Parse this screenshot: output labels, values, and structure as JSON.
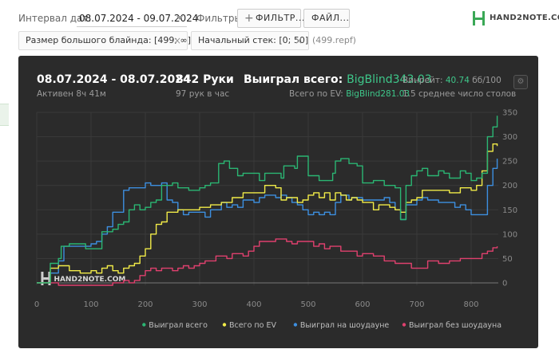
{
  "toolbar": {
    "interval_label": "Интервал дат:",
    "date_range": "08.07.2024 - 09.07.2024",
    "filters_label": "Фильтры:",
    "filter_button": "ФИЛЬТР...",
    "files_button": "ФАЙЛ..."
  },
  "logo": {
    "name": "HAND2NOTE.COM"
  },
  "chips": [
    {
      "label": "Размер большого блайнда: [499; ∞]",
      "close": "×"
    },
    {
      "label": "Начальный стек: [0; 50]",
      "close": "×"
    }
  ],
  "file_name": "(499.repf)",
  "summary": {
    "period": "08.07.2024 - 08.07.2024",
    "active": "Активен 8ч 41м",
    "hands": "842 Руки",
    "hands_per_hour": "97 рук в час",
    "won_label": "Выиграл всего:",
    "won_value": "BigBlind343.03",
    "ev_label": "Всего по EV:",
    "ev_value": "BigBlind281.03",
    "winrate_label": "Винрейт:",
    "winrate_value": "40.74",
    "winrate_unit": "бб/100",
    "tables": "1.5 среднее число столов"
  },
  "colors": {
    "won": "#2bb673",
    "ev": "#f2ec48",
    "showdown": "#3d8fe0",
    "nonshowdown": "#e0406e",
    "background": "#2b2b2b",
    "accent": "#3ec78a"
  },
  "chart_data": {
    "type": "line",
    "xlim": [
      0,
      850
    ],
    "ylim": [
      -5,
      350
    ],
    "x_ticks": [
      0,
      100,
      200,
      300,
      400,
      500,
      600,
      700,
      800
    ],
    "y_ticks": [
      0,
      50,
      100,
      150,
      200,
      250,
      300,
      350
    ],
    "watermark": "HAND2NOTE.COM",
    "legend_position": "bottom-right",
    "grid": true,
    "series": [
      {
        "name": "Выиграл всего",
        "color": "#2bb673",
        "points": [
          [
            0,
            0
          ],
          [
            15,
            0
          ],
          [
            25,
            40
          ],
          [
            40,
            50
          ],
          [
            45,
            75
          ],
          [
            60,
            80
          ],
          [
            80,
            80
          ],
          [
            90,
            70
          ],
          [
            100,
            70
          ],
          [
            120,
            105
          ],
          [
            140,
            110
          ],
          [
            150,
            120
          ],
          [
            160,
            125
          ],
          [
            170,
            150
          ],
          [
            180,
            160
          ],
          [
            190,
            150
          ],
          [
            200,
            155
          ],
          [
            210,
            165
          ],
          [
            220,
            170
          ],
          [
            230,
            200
          ],
          [
            250,
            205
          ],
          [
            260,
            195
          ],
          [
            280,
            190
          ],
          [
            300,
            195
          ],
          [
            310,
            200
          ],
          [
            320,
            205
          ],
          [
            330,
            205
          ],
          [
            335,
            245
          ],
          [
            345,
            250
          ],
          [
            355,
            235
          ],
          [
            370,
            220
          ],
          [
            380,
            225
          ],
          [
            400,
            225
          ],
          [
            410,
            210
          ],
          [
            420,
            225
          ],
          [
            450,
            215
          ],
          [
            455,
            240
          ],
          [
            475,
            235
          ],
          [
            480,
            260
          ],
          [
            490,
            260
          ],
          [
            500,
            220
          ],
          [
            520,
            210
          ],
          [
            545,
            225
          ],
          [
            550,
            250
          ],
          [
            560,
            255
          ],
          [
            575,
            245
          ],
          [
            590,
            240
          ],
          [
            600,
            205
          ],
          [
            620,
            210
          ],
          [
            640,
            200
          ],
          [
            660,
            195
          ],
          [
            670,
            130
          ],
          [
            675,
            130
          ],
          [
            680,
            200
          ],
          [
            690,
            220
          ],
          [
            700,
            230
          ],
          [
            710,
            235
          ],
          [
            720,
            220
          ],
          [
            740,
            230
          ],
          [
            750,
            225
          ],
          [
            760,
            215
          ],
          [
            780,
            230
          ],
          [
            790,
            225
          ],
          [
            800,
            210
          ],
          [
            810,
            215
          ],
          [
            820,
            225
          ],
          [
            830,
            300
          ],
          [
            840,
            320
          ],
          [
            848,
            343
          ]
        ]
      },
      {
        "name": "Всего по EV",
        "color": "#f2ec48",
        "points": [
          [
            0,
            0
          ],
          [
            15,
            0
          ],
          [
            25,
            30
          ],
          [
            40,
            35
          ],
          [
            60,
            25
          ],
          [
            80,
            20
          ],
          [
            100,
            25
          ],
          [
            110,
            20
          ],
          [
            120,
            30
          ],
          [
            130,
            35
          ],
          [
            140,
            25
          ],
          [
            150,
            20
          ],
          [
            160,
            30
          ],
          [
            170,
            35
          ],
          [
            180,
            40
          ],
          [
            190,
            55
          ],
          [
            200,
            70
          ],
          [
            210,
            100
          ],
          [
            220,
            120
          ],
          [
            230,
            125
          ],
          [
            240,
            145
          ],
          [
            260,
            150
          ],
          [
            280,
            150
          ],
          [
            300,
            155
          ],
          [
            320,
            160
          ],
          [
            340,
            165
          ],
          [
            350,
            165
          ],
          [
            360,
            175
          ],
          [
            380,
            185
          ],
          [
            400,
            185
          ],
          [
            420,
            200
          ],
          [
            440,
            195
          ],
          [
            450,
            170
          ],
          [
            460,
            175
          ],
          [
            480,
            165
          ],
          [
            490,
            170
          ],
          [
            500,
            180
          ],
          [
            510,
            185
          ],
          [
            520,
            175
          ],
          [
            530,
            185
          ],
          [
            540,
            170
          ],
          [
            550,
            185
          ],
          [
            560,
            180
          ],
          [
            570,
            170
          ],
          [
            580,
            175
          ],
          [
            590,
            170
          ],
          [
            600,
            165
          ],
          [
            620,
            150
          ],
          [
            630,
            160
          ],
          [
            650,
            155
          ],
          [
            660,
            150
          ],
          [
            670,
            145
          ],
          [
            680,
            165
          ],
          [
            690,
            170
          ],
          [
            700,
            175
          ],
          [
            710,
            190
          ],
          [
            740,
            190
          ],
          [
            760,
            185
          ],
          [
            780,
            195
          ],
          [
            800,
            190
          ],
          [
            810,
            200
          ],
          [
            820,
            230
          ],
          [
            830,
            270
          ],
          [
            840,
            285
          ],
          [
            848,
            281
          ]
        ]
      },
      {
        "name": "Выиграл на шоудауне",
        "color": "#3d8fe0",
        "points": [
          [
            0,
            0
          ],
          [
            15,
            0
          ],
          [
            25,
            20
          ],
          [
            40,
            45
          ],
          [
            50,
            75
          ],
          [
            60,
            75
          ],
          [
            80,
            75
          ],
          [
            100,
            80
          ],
          [
            110,
            85
          ],
          [
            120,
            100
          ],
          [
            130,
            115
          ],
          [
            140,
            145
          ],
          [
            155,
            145
          ],
          [
            160,
            190
          ],
          [
            170,
            195
          ],
          [
            190,
            195
          ],
          [
            200,
            205
          ],
          [
            210,
            200
          ],
          [
            220,
            200
          ],
          [
            230,
            205
          ],
          [
            240,
            170
          ],
          [
            250,
            165
          ],
          [
            260,
            150
          ],
          [
            270,
            140
          ],
          [
            280,
            145
          ],
          [
            300,
            145
          ],
          [
            310,
            135
          ],
          [
            320,
            150
          ],
          [
            330,
            150
          ],
          [
            340,
            165
          ],
          [
            350,
            155
          ],
          [
            360,
            160
          ],
          [
            370,
            155
          ],
          [
            380,
            170
          ],
          [
            400,
            165
          ],
          [
            410,
            175
          ],
          [
            420,
            180
          ],
          [
            440,
            175
          ],
          [
            450,
            180
          ],
          [
            460,
            175
          ],
          [
            470,
            165
          ],
          [
            480,
            160
          ],
          [
            490,
            150
          ],
          [
            500,
            140
          ],
          [
            510,
            145
          ],
          [
            520,
            140
          ],
          [
            530,
            145
          ],
          [
            540,
            140
          ],
          [
            550,
            165
          ],
          [
            560,
            180
          ],
          [
            575,
            170
          ],
          [
            580,
            175
          ],
          [
            600,
            170
          ],
          [
            620,
            170
          ],
          [
            640,
            175
          ],
          [
            650,
            165
          ],
          [
            660,
            150
          ],
          [
            670,
            130
          ],
          [
            680,
            160
          ],
          [
            690,
            160
          ],
          [
            700,
            170
          ],
          [
            710,
            175
          ],
          [
            720,
            170
          ],
          [
            740,
            165
          ],
          [
            760,
            165
          ],
          [
            770,
            155
          ],
          [
            780,
            160
          ],
          [
            790,
            150
          ],
          [
            800,
            140
          ],
          [
            820,
            140
          ],
          [
            830,
            200
          ],
          [
            840,
            235
          ],
          [
            848,
            255
          ]
        ]
      },
      {
        "name": "Выиграл без шоудауна",
        "color": "#e0406e",
        "points": [
          [
            0,
            0
          ],
          [
            20,
            0
          ],
          [
            40,
            -5
          ],
          [
            60,
            -5
          ],
          [
            80,
            -5
          ],
          [
            100,
            -5
          ],
          [
            120,
            -5
          ],
          [
            140,
            0
          ],
          [
            160,
            5
          ],
          [
            170,
            0
          ],
          [
            180,
            5
          ],
          [
            190,
            15
          ],
          [
            200,
            25
          ],
          [
            210,
            30
          ],
          [
            220,
            25
          ],
          [
            230,
            30
          ],
          [
            250,
            25
          ],
          [
            260,
            30
          ],
          [
            270,
            35
          ],
          [
            280,
            30
          ],
          [
            290,
            35
          ],
          [
            300,
            40
          ],
          [
            310,
            45
          ],
          [
            320,
            45
          ],
          [
            330,
            55
          ],
          [
            340,
            55
          ],
          [
            350,
            50
          ],
          [
            360,
            60
          ],
          [
            380,
            55
          ],
          [
            390,
            65
          ],
          [
            400,
            75
          ],
          [
            410,
            85
          ],
          [
            420,
            85
          ],
          [
            440,
            90
          ],
          [
            460,
            85
          ],
          [
            470,
            80
          ],
          [
            480,
            85
          ],
          [
            500,
            85
          ],
          [
            510,
            75
          ],
          [
            520,
            80
          ],
          [
            530,
            70
          ],
          [
            540,
            75
          ],
          [
            560,
            65
          ],
          [
            575,
            65
          ],
          [
            590,
            55
          ],
          [
            600,
            60
          ],
          [
            620,
            55
          ],
          [
            640,
            45
          ],
          [
            660,
            40
          ],
          [
            680,
            40
          ],
          [
            690,
            30
          ],
          [
            700,
            30
          ],
          [
            720,
            45
          ],
          [
            740,
            40
          ],
          [
            760,
            45
          ],
          [
            780,
            50
          ],
          [
            800,
            50
          ],
          [
            820,
            60
          ],
          [
            830,
            65
          ],
          [
            840,
            72
          ],
          [
            848,
            75
          ]
        ]
      }
    ]
  }
}
